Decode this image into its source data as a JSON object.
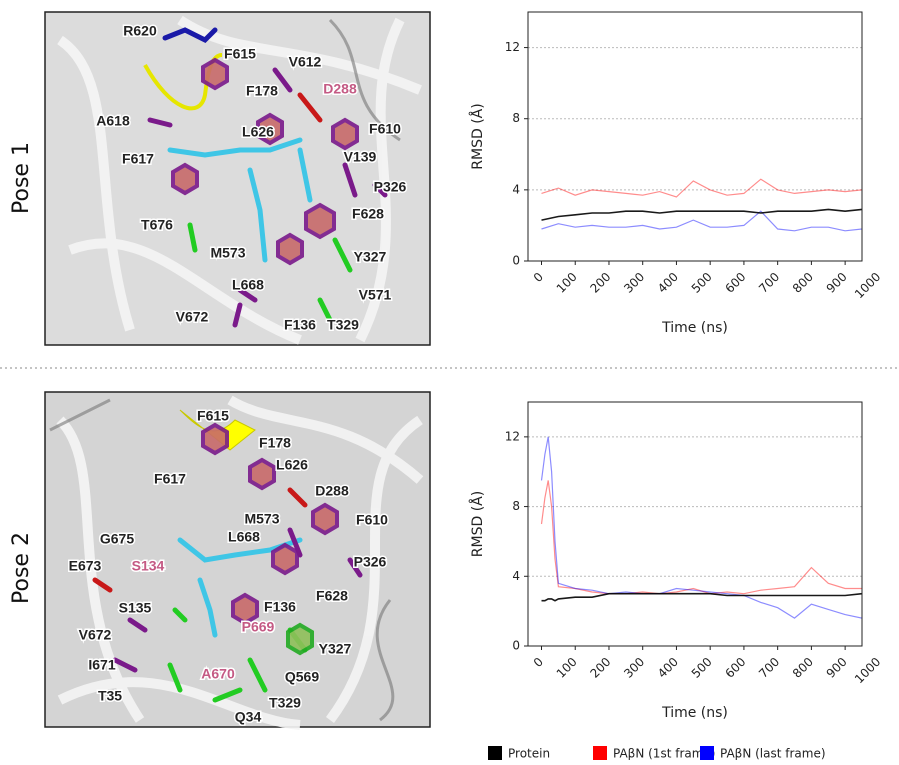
{
  "panels": [
    {
      "label": "Pose 1",
      "residues": [
        "R620",
        "F615",
        "V612",
        "D288",
        "F178",
        "A618",
        "L626",
        "F610",
        "V139",
        "F617",
        "P326",
        "F628",
        "T676",
        "M573",
        "Y327",
        "L668",
        "V571",
        "V672",
        "F136",
        "T329"
      ]
    },
    {
      "label": "Pose 2",
      "residues": [
        "F615",
        "F178",
        "L626",
        "F617",
        "D288",
        "F610",
        "M573",
        "G675",
        "L668",
        "S134",
        "E673",
        "P326",
        "S135",
        "F628",
        "F136",
        "P669",
        "V672",
        "Y327",
        "I671",
        "A670",
        "Q569",
        "T35",
        "T329",
        "Q34"
      ]
    }
  ],
  "chart_data": [
    {
      "type": "line",
      "xlabel": "Time (ns)",
      "ylabel": "RMSD (Å)",
      "x": [
        0,
        50,
        100,
        150,
        200,
        250,
        300,
        350,
        400,
        450,
        500,
        550,
        600,
        650,
        700,
        750,
        800,
        850,
        900,
        950
      ],
      "series": [
        {
          "color": "#ff0000",
          "values": [
            3.8,
            4.1,
            3.7,
            4.0,
            3.9,
            3.8,
            3.7,
            3.9,
            3.6,
            4.5,
            4.0,
            3.7,
            3.8,
            4.6,
            4.0,
            3.8,
            3.9,
            4.0,
            3.9,
            4.0
          ]
        },
        {
          "color": "#0000ff",
          "values": [
            1.8,
            2.1,
            1.9,
            2.0,
            1.9,
            1.9,
            2.0,
            1.8,
            1.9,
            2.3,
            1.9,
            1.9,
            2.0,
            2.8,
            1.8,
            1.7,
            1.9,
            1.9,
            1.7,
            1.8
          ]
        },
        {
          "color": "#000000",
          "values": [
            2.3,
            2.5,
            2.6,
            2.7,
            2.7,
            2.8,
            2.8,
            2.7,
            2.8,
            2.8,
            2.8,
            2.8,
            2.8,
            2.7,
            2.8,
            2.8,
            2.8,
            2.9,
            2.8,
            2.9
          ]
        }
      ],
      "xlim": [
        -40,
        950
      ],
      "ylim": [
        0,
        14
      ],
      "xticks": [
        0,
        100,
        200,
        300,
        400,
        500,
        600,
        700,
        800,
        900,
        1000
      ],
      "yticks": [
        0,
        4,
        8,
        12
      ],
      "grid": true
    },
    {
      "type": "line",
      "xlabel": "Time (ns)",
      "ylabel": "RMSD (Å)",
      "x": [
        0,
        10,
        20,
        30,
        40,
        50,
        100,
        150,
        200,
        250,
        300,
        350,
        400,
        450,
        500,
        550,
        600,
        650,
        700,
        750,
        800,
        850,
        900,
        950
      ],
      "series": [
        {
          "name": "PAβN (1st frame)",
          "color": "#ff0000",
          "values": [
            7,
            8.5,
            9.5,
            8,
            5,
            3.4,
            3.3,
            3.1,
            3.0,
            3.0,
            3.1,
            3.0,
            3.1,
            3.3,
            3.0,
            3.1,
            3.0,
            3.2,
            3.3,
            3.4,
            4.5,
            3.6,
            3.3,
            3.3
          ]
        },
        {
          "name": "PAβN (last frame)",
          "color": "#0000ff",
          "values": [
            9.5,
            11,
            12,
            10,
            6,
            3.6,
            3.3,
            3.2,
            3.0,
            3.1,
            3.0,
            3.0,
            3.3,
            3.2,
            3.1,
            3.0,
            2.9,
            2.5,
            2.2,
            1.6,
            2.4,
            2.1,
            1.8,
            1.6
          ]
        },
        {
          "name": "Protein",
          "color": "#000000",
          "values": [
            2.6,
            2.6,
            2.7,
            2.7,
            2.6,
            2.7,
            2.8,
            2.8,
            3.0,
            3.0,
            3.0,
            3.0,
            3.0,
            3.0,
            3.0,
            2.9,
            2.9,
            2.9,
            2.9,
            2.9,
            2.9,
            2.9,
            2.9,
            3.0
          ]
        }
      ],
      "xlim": [
        -40,
        950
      ],
      "ylim": [
        0,
        14
      ],
      "xticks": [
        0,
        100,
        200,
        300,
        400,
        500,
        600,
        700,
        800,
        900,
        1000
      ],
      "yticks": [
        0,
        4,
        8,
        12
      ],
      "grid": true
    }
  ]
}
